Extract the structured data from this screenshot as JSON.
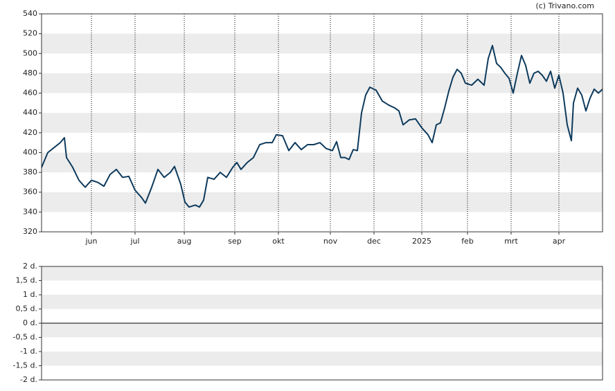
{
  "chart_data": [
    {
      "type": "line",
      "credit": "(c) Trivano.com",
      "x": [
        0,
        3,
        6,
        9,
        11,
        12,
        15,
        18,
        21,
        24,
        27,
        30,
        33,
        36,
        39,
        42,
        45,
        48,
        50,
        53,
        56,
        59,
        62,
        64,
        67,
        69,
        71,
        74,
        76,
        78,
        80,
        83,
        86,
        89,
        92,
        94,
        96,
        99,
        102,
        105,
        108,
        111,
        113,
        116,
        119,
        122,
        125,
        128,
        131,
        134,
        137,
        140,
        142,
        144,
        146,
        148,
        150,
        152,
        154,
        156,
        158,
        161,
        164,
        167,
        170,
        172,
        174,
        177,
        180,
        183,
        186,
        188,
        190,
        192,
        194,
        196,
        198,
        200,
        202,
        204,
        207,
        210,
        213,
        215,
        217,
        219,
        221,
        223,
        225,
        227,
        229,
        231,
        233,
        235,
        237,
        239,
        241,
        243,
        245,
        247,
        249,
        251,
        253,
        255,
        256,
        258,
        260,
        262,
        264,
        266,
        268,
        270
      ],
      "series": [
        {
          "color": "#0d3a5c",
          "values": [
            385,
            400,
            405,
            410,
            415,
            395,
            385,
            372,
            365,
            372,
            370,
            366,
            378,
            383,
            375,
            376,
            362,
            355,
            349,
            365,
            383,
            375,
            380,
            386,
            368,
            350,
            345,
            347,
            345,
            352,
            375,
            373,
            380,
            375,
            385,
            390,
            383,
            390,
            395,
            408,
            410,
            410,
            418,
            417,
            402,
            410,
            403,
            408,
            408,
            410,
            404,
            402,
            411,
            395,
            395,
            393,
            403,
            402,
            440,
            458,
            466,
            463,
            452,
            448,
            445,
            442,
            428,
            433,
            434,
            425,
            418,
            410,
            428,
            430,
            445,
            462,
            476,
            484,
            480,
            470,
            468,
            474,
            468,
            495,
            508,
            490,
            486,
            480,
            475,
            460,
            480,
            498,
            488,
            470,
            480,
            482,
            478,
            472,
            482,
            465,
            478,
            460,
            428,
            412,
            450,
            465,
            458,
            442,
            455,
            464,
            460,
            464
          ]
        }
      ],
      "xlim": [
        0,
        270
      ],
      "xticks": [
        {
          "value": 24,
          "label": "jun"
        },
        {
          "value": 45,
          "label": "jul"
        },
        {
          "value": 68.7,
          "label": "aug"
        },
        {
          "value": 93,
          "label": "sep"
        },
        {
          "value": 114,
          "label": "okt"
        },
        {
          "value": 139,
          "label": "nov"
        },
        {
          "value": 160,
          "label": "dec"
        },
        {
          "value": 183,
          "label": "2025"
        },
        {
          "value": 205,
          "label": "feb"
        },
        {
          "value": 226,
          "label": "mrt"
        },
        {
          "value": 249,
          "label": "apr"
        }
      ],
      "ylim": [
        320,
        540
      ],
      "yticks": [
        320,
        340,
        360,
        380,
        400,
        420,
        440,
        460,
        480,
        500,
        520,
        540
      ]
    },
    {
      "type": "line",
      "ylim": [
        -2,
        2
      ],
      "yticks": [
        {
          "value": 2,
          "label": "2 d."
        },
        {
          "value": 1.5,
          "label": "1,5 d."
        },
        {
          "value": 1,
          "label": "1 d."
        },
        {
          "value": 0.5,
          "label": "0,5 d."
        },
        {
          "value": 0,
          "label": "0 d."
        },
        {
          "value": -0.5,
          "label": "-0,5 d."
        },
        {
          "value": -1,
          "label": "-1 d."
        },
        {
          "value": -1.5,
          "label": "-1,5 d."
        },
        {
          "value": -2,
          "label": "-2 d."
        }
      ]
    }
  ]
}
